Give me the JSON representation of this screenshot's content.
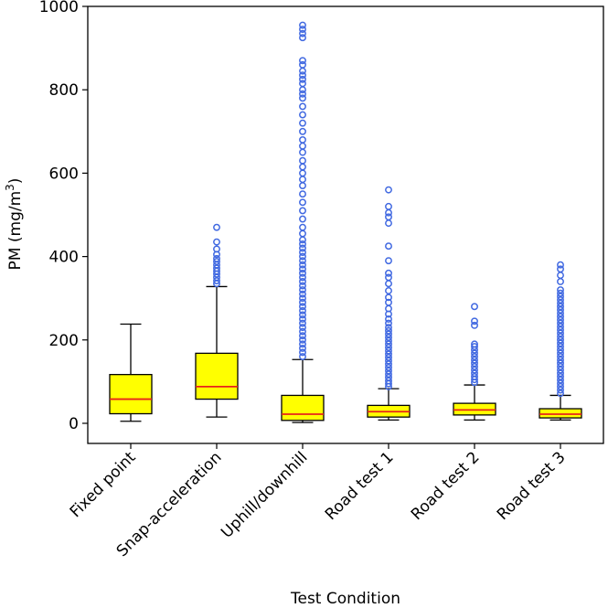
{
  "chart_data": {
    "type": "box",
    "title": "",
    "xlabel": "Test Condition",
    "ylabel": "PM (mg/m³)",
    "ylabel_main": "PM (mg/m",
    "ylabel_sup": "3",
    "ylabel_close": ")",
    "ylim": [
      -50,
      1000
    ],
    "yticks": [
      0,
      200,
      400,
      600,
      800,
      1000
    ],
    "categories": [
      "Fixed point",
      "Snap-acceleration",
      "Uphill/downhill",
      "Road test 1",
      "Road test 2",
      "Road test 3"
    ],
    "box_color": "#ffff00",
    "median_color": "#e8221b",
    "outlier_color": "#4169e1",
    "boxes": [
      {
        "name": "Fixed point",
        "whislo": 5,
        "q1": 23,
        "med": 58,
        "q3": 117,
        "whishi": 238,
        "fliers": []
      },
      {
        "name": "Snap-acceleration",
        "whislo": 15,
        "q1": 58,
        "med": 88,
        "q3": 168,
        "whishi": 328,
        "fliers": [
          335,
          342,
          350,
          358,
          365,
          372,
          380,
          388,
          395,
          405,
          418,
          435,
          470
        ]
      },
      {
        "name": "Uphill/downhill",
        "whislo": 2,
        "q1": 7,
        "med": 22,
        "q3": 67,
        "whishi": 153,
        "fliers": [
          160,
          170,
          180,
          190,
          200,
          210,
          220,
          230,
          240,
          250,
          260,
          270,
          280,
          290,
          300,
          310,
          320,
          330,
          340,
          350,
          360,
          370,
          380,
          390,
          400,
          410,
          420,
          430,
          440,
          455,
          470,
          490,
          510,
          530,
          550,
          570,
          585,
          600,
          615,
          630,
          650,
          665,
          680,
          700,
          720,
          740,
          760,
          780,
          790,
          800,
          815,
          825,
          835,
          845,
          860,
          870,
          925,
          935,
          945,
          955
        ]
      },
      {
        "name": "Road test 1",
        "whislo": 8,
        "q1": 15,
        "med": 28,
        "q3": 43,
        "whishi": 83,
        "fliers": [
          88,
          95,
          102,
          110,
          118,
          126,
          134,
          142,
          150,
          158,
          166,
          174,
          182,
          190,
          198,
          206,
          214,
          222,
          230,
          240,
          250,
          262,
          275,
          290,
          302,
          318,
          335,
          350,
          360,
          390,
          425,
          480,
          495,
          505,
          520,
          560
        ]
      },
      {
        "name": "Road test 2",
        "whislo": 8,
        "q1": 20,
        "med": 32,
        "q3": 48,
        "whishi": 92,
        "fliers": [
          98,
          105,
          112,
          120,
          128,
          136,
          144,
          152,
          160,
          168,
          176,
          184,
          190,
          235,
          245,
          280
        ]
      },
      {
        "name": "Road test 3",
        "whislo": 8,
        "q1": 13,
        "med": 22,
        "q3": 35,
        "whishi": 67,
        "fliers": [
          72,
          80,
          88,
          96,
          104,
          112,
          120,
          128,
          136,
          144,
          152,
          160,
          168,
          176,
          184,
          192,
          200,
          208,
          216,
          224,
          232,
          240,
          248,
          256,
          264,
          272,
          280,
          288,
          296,
          304,
          312,
          320,
          340,
          355,
          370,
          380
        ]
      }
    ]
  }
}
